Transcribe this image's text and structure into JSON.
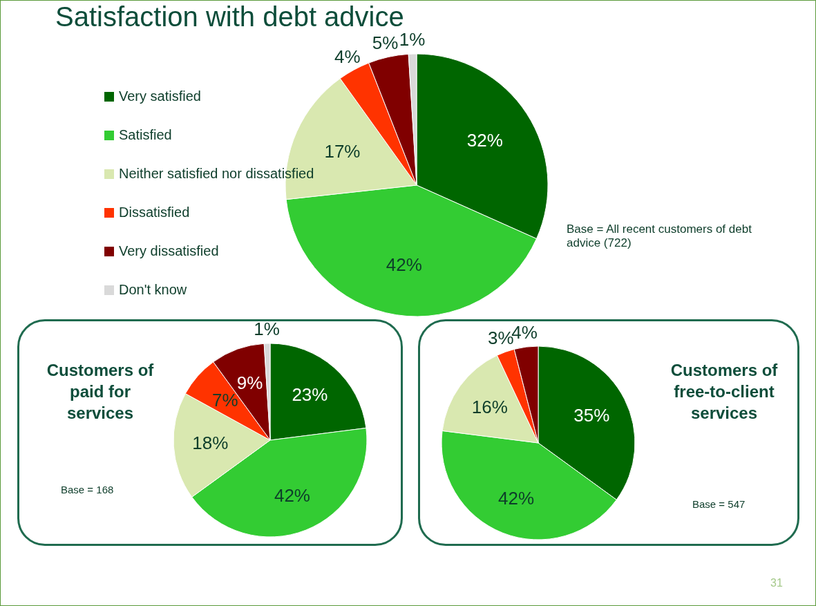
{
  "chart_data": [
    {
      "type": "pie",
      "title": "Satisfaction with debt advice",
      "categories": [
        "Very satisfied",
        "Satisfied",
        "Neither satisfied nor dissatisfied",
        "Dissatisfied",
        "Very dissatisfied",
        "Don't know"
      ],
      "values": [
        32,
        42,
        17,
        4,
        5,
        1
      ],
      "value_labels": [
        "32%",
        "42%",
        "17%",
        "4%",
        "5%",
        "1%"
      ],
      "colors": [
        "#006600",
        "#33cc33",
        "#d9e8b0",
        "#ff3300",
        "#800000",
        "#d9d9d9"
      ],
      "legend": "left",
      "annotations": [
        "Base = All recent customers of debt advice (722)",
        "31"
      ]
    },
    {
      "type": "pie",
      "title": "Customers of paid for services",
      "categories": [
        null,
        null,
        null,
        null,
        null,
        null
      ],
      "values": [
        23,
        42,
        18,
        7,
        9,
        1
      ],
      "value_labels": [
        "23%",
        "42%",
        "18%",
        "7%",
        "9%",
        "1%"
      ],
      "colors": [
        "#006600",
        "#33cc33",
        "#d9e8b0",
        "#ff3300",
        "#800000",
        "#d9d9d9"
      ],
      "annotations": [
        "Base = 168"
      ]
    },
    {
      "type": "pie",
      "title": "Customers of free-to-client services",
      "categories": [
        null,
        null,
        null,
        null,
        null
      ],
      "values": [
        35,
        42,
        16,
        3,
        4
      ],
      "value_labels": [
        "35%",
        "42%",
        "16%",
        "3%",
        "4%"
      ],
      "colors": [
        "#006600",
        "#33cc33",
        "#d9e8b0",
        "#ff3300",
        "#800000"
      ],
      "annotations": [
        "Base = 547"
      ]
    }
  ]
}
